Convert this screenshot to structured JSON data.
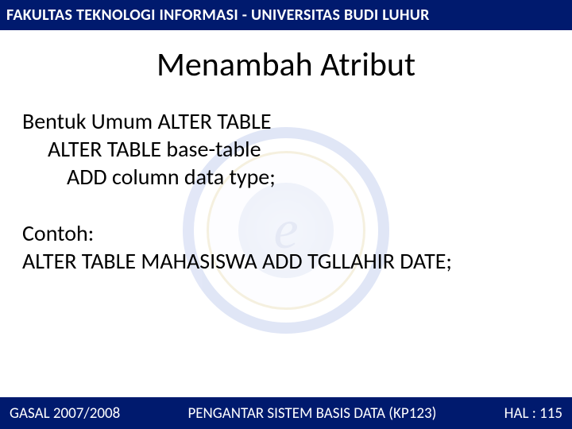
{
  "colors": {
    "header_bg": "#001a6e",
    "header_text": "#ffffff",
    "body_bg": "#ffffff",
    "body_text": "#000000",
    "watermark_ring": "#3a5fc8",
    "watermark_gold": "#c0a030"
  },
  "typography": {
    "header_fontsize": 20,
    "title_fontsize": 42,
    "body_fontsize": 28,
    "footer_fontsize": 19,
    "font_family": "Calibri, Arial, sans-serif"
  },
  "header": {
    "text": "FAKULTAS TEKNOLOGI INFORMASI - UNIVERSITAS BUDI LUHUR"
  },
  "title": "Menambah Atribut",
  "body": {
    "line1": "Bentuk Umum ALTER TABLE",
    "line2": "ALTER TABLE base-table",
    "line3": "ADD column data type;",
    "line4": "Contoh:",
    "line5": "ALTER TABLE MAHASISWA ADD TGLLAHIR DATE;"
  },
  "footer": {
    "left": "GASAL 2007/2008",
    "center": "PENGANTAR SISTEM BASIS DATA (KP123)",
    "right": "HAL : 115"
  },
  "watermark": {
    "letter": "e"
  }
}
